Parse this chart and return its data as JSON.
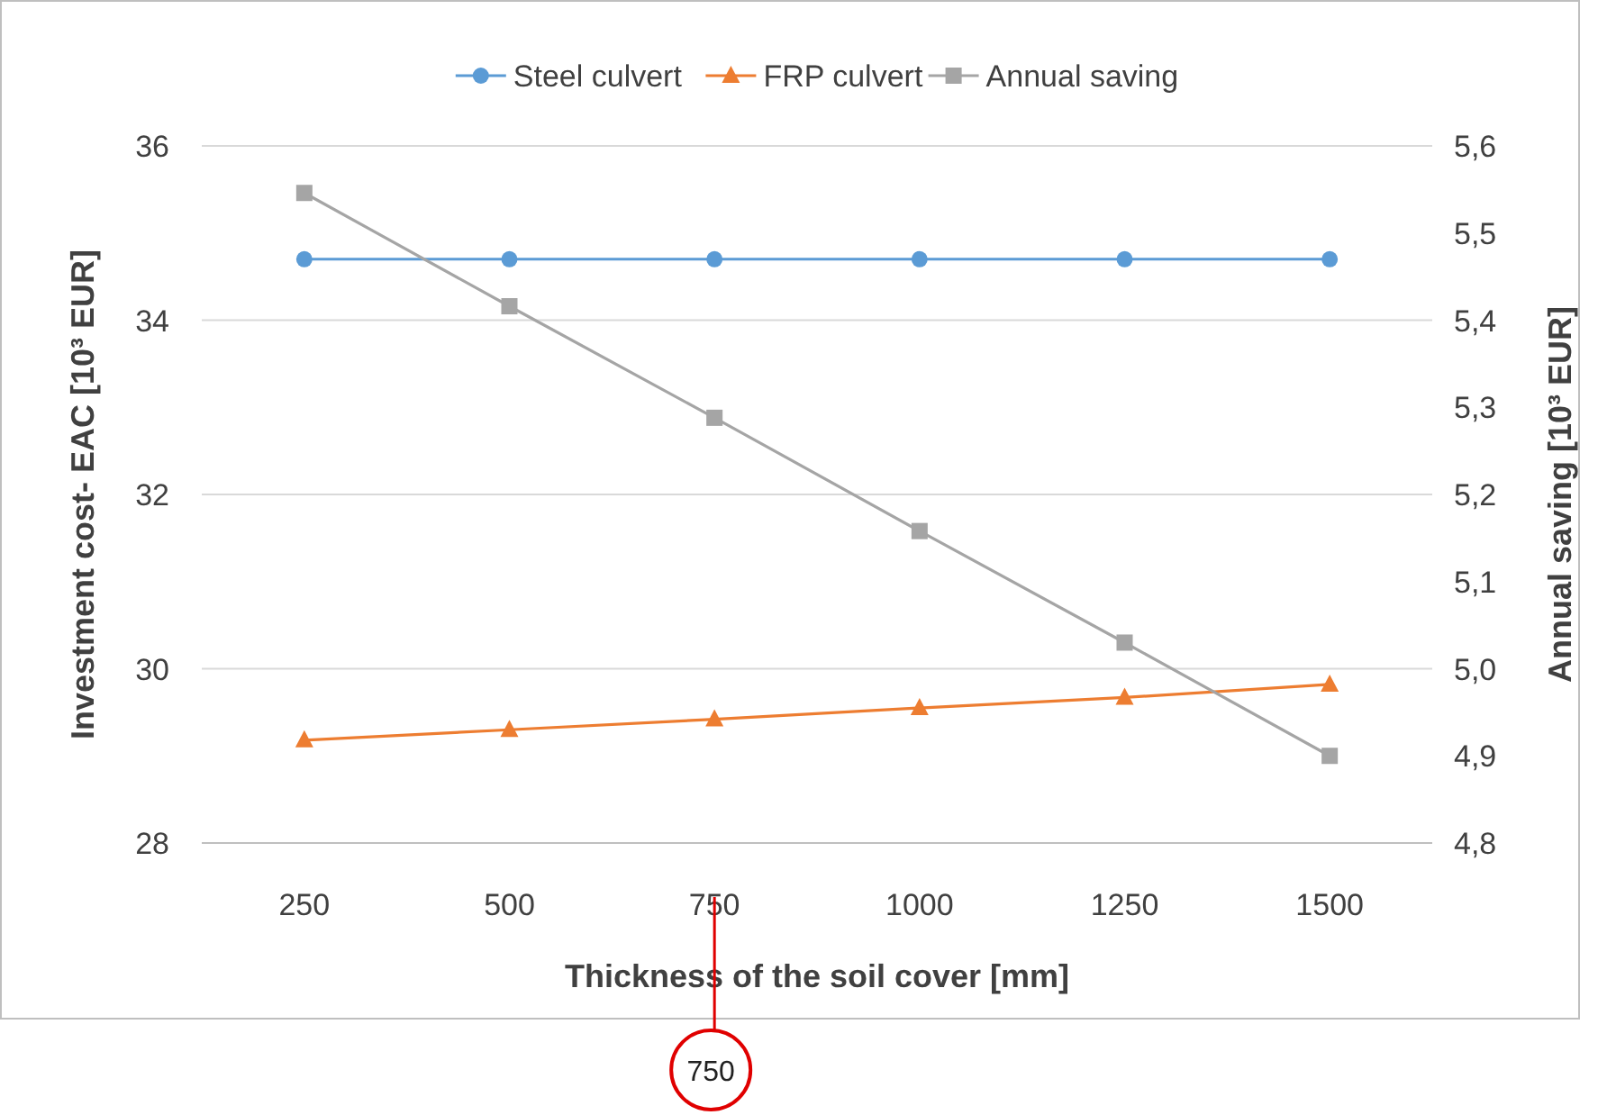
{
  "chart_data": {
    "type": "line",
    "xlabel": "Thickness of the soil cover [mm]",
    "ylabel": "Investment cost- EAC [10³ EUR]",
    "y2label": "Annual  saving [10³ EUR]",
    "categories": [
      "250",
      "500",
      "750",
      "1000",
      "1250",
      "1500"
    ],
    "series": [
      {
        "name": "Steel culvert",
        "color": "#5b9bd5",
        "marker": "circle",
        "values": [
          34.7,
          34.7,
          34.7,
          34.7,
          34.7,
          34.7
        ]
      },
      {
        "name": "FRP culvert",
        "color": "#ed7d31",
        "marker": "triangle",
        "values": [
          29.18,
          29.3,
          29.42,
          29.55,
          29.67,
          29.82
        ]
      },
      {
        "name": "Annual saving",
        "color": "#a5a5a5",
        "marker": "square",
        "axis": "y2",
        "values": [
          5.546,
          5.416,
          5.288,
          5.158,
          5.03,
          4.9
        ]
      }
    ],
    "ylim": [
      28,
      36
    ],
    "yticks": [
      28,
      30,
      32,
      34,
      36
    ],
    "y2lim": [
      4.8,
      5.6
    ],
    "y2ticks": [
      {
        "value": 4.8,
        "label": "4,8"
      },
      {
        "value": 4.9,
        "label": "4,9"
      },
      {
        "value": 5.0,
        "label": "5,0"
      },
      {
        "value": 5.1,
        "label": "5,1"
      },
      {
        "value": 5.2,
        "label": "5,2"
      },
      {
        "value": 5.3,
        "label": "5,3"
      },
      {
        "value": 5.4,
        "label": "5,4"
      },
      {
        "value": 5.5,
        "label": "5,5"
      },
      {
        "value": 5.6,
        "label": "5,6"
      }
    ],
    "grid": "y",
    "legend": "top",
    "line_style": "solid",
    "annotations": [
      {
        "text": "750",
        "x": "750"
      }
    ]
  }
}
